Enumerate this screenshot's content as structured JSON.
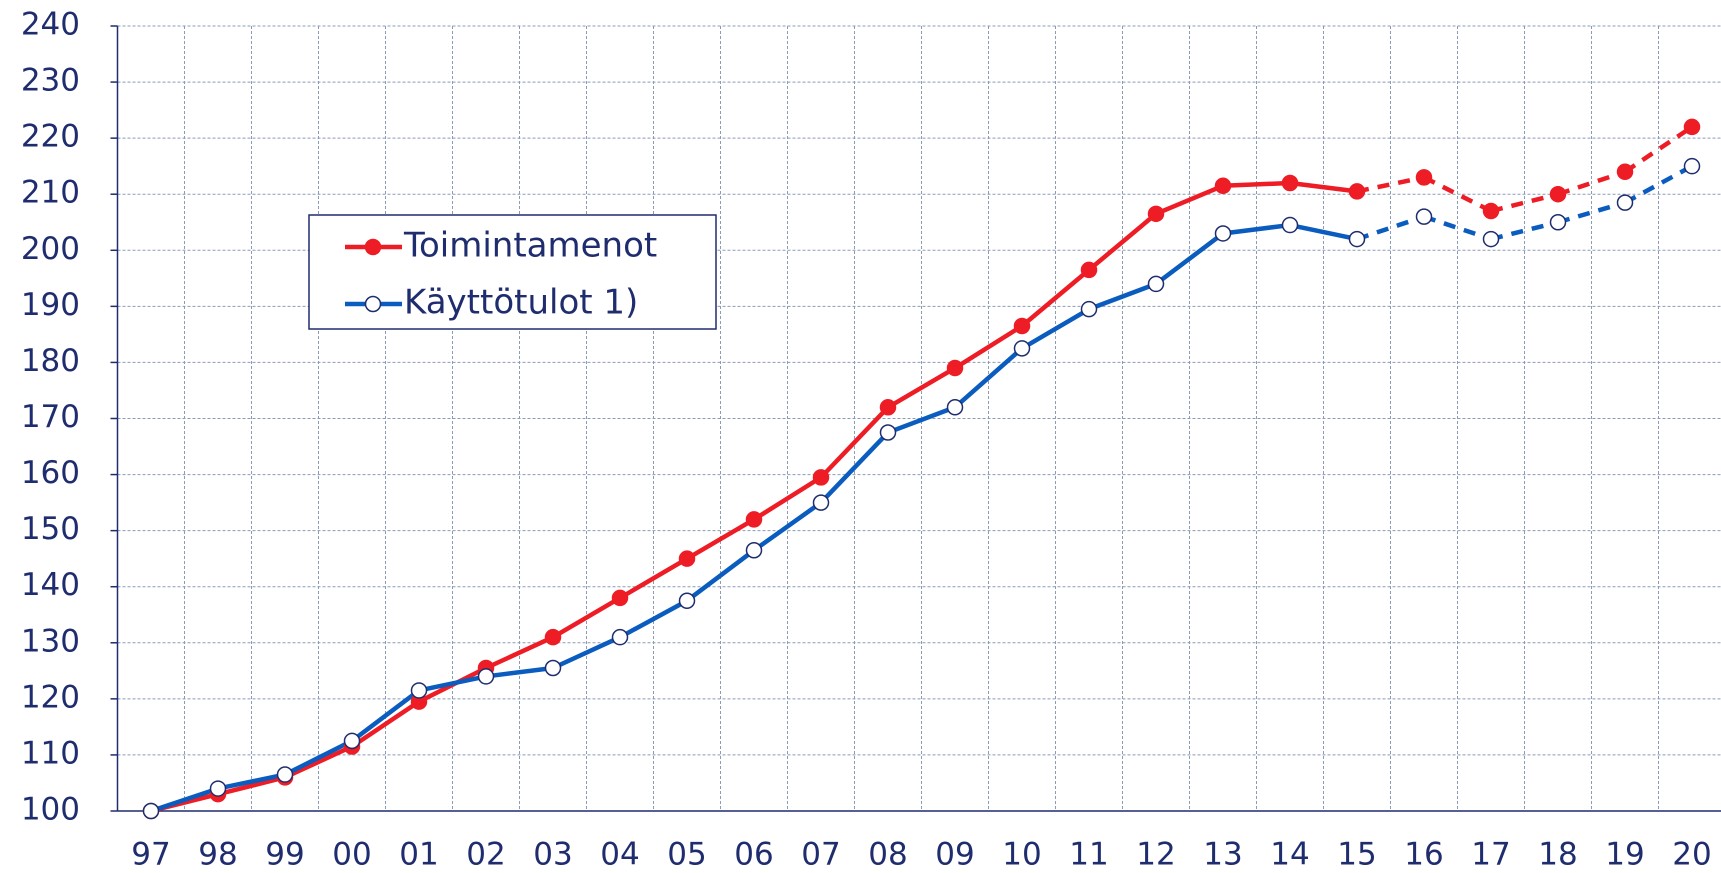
{
  "chart_data": {
    "type": "line",
    "categories": [
      "97",
      "98",
      "99",
      "00",
      "01",
      "02",
      "03",
      "04",
      "05",
      "06",
      "07",
      "08",
      "09",
      "10",
      "11",
      "12",
      "13",
      "14",
      "15",
      "16",
      "17",
      "18",
      "19",
      "20"
    ],
    "series": [
      {
        "name": "Toimintamenot",
        "color": "#ee1c25",
        "marker": "filled",
        "values": [
          100,
          103,
          106,
          111.5,
          119.5,
          125.5,
          131,
          138,
          145,
          152,
          159.5,
          172,
          179,
          186.5,
          196.5,
          206.5,
          211.5,
          212,
          210.5,
          213,
          207,
          210,
          214,
          222
        ]
      },
      {
        "name": "Käyttötulot 1)",
        "color": "#0a5cbf",
        "marker": "open",
        "values": [
          100,
          104,
          106.5,
          112.5,
          121.5,
          124,
          125.5,
          131,
          137.5,
          146.5,
          155,
          167.5,
          172,
          182.5,
          189.5,
          194,
          203,
          204.5,
          202,
          206,
          202,
          205,
          208.5,
          215
        ]
      }
    ],
    "dashed_from": "15",
    "ylim": [
      100,
      240
    ],
    "yticks": [
      100,
      110,
      120,
      130,
      140,
      150,
      160,
      170,
      180,
      190,
      200,
      210,
      220,
      230,
      240
    ],
    "grid": true
  }
}
